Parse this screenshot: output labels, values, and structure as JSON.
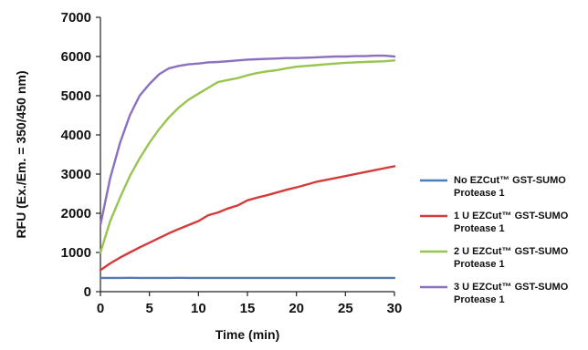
{
  "chart_data": {
    "type": "line",
    "title": "",
    "xlabel": "Time (min)",
    "ylabel": "RFU (Ex./Em. = 350/450 nm)",
    "xlim": [
      0,
      30
    ],
    "ylim": [
      0,
      7000
    ],
    "xticks": [
      0,
      5,
      10,
      15,
      20,
      25,
      30
    ],
    "yticks": [
      0,
      1000,
      2000,
      3000,
      4000,
      5000,
      6000,
      7000
    ],
    "grid": false,
    "legend_position": "right",
    "x": [
      0,
      1,
      2,
      3,
      4,
      5,
      6,
      7,
      8,
      9,
      10,
      11,
      12,
      13,
      14,
      15,
      16,
      17,
      18,
      19,
      20,
      21,
      22,
      23,
      24,
      25,
      26,
      27,
      28,
      29,
      30
    ],
    "series": [
      {
        "name_line1": "No EZCut™ GST-SUMO",
        "name_line2": "Protease 1",
        "color": "#4a7ebb",
        "values": [
          350,
          352,
          351,
          353,
          352,
          350,
          351,
          352,
          353,
          351,
          350,
          352,
          351,
          350,
          352,
          351,
          350,
          351,
          352,
          350,
          351,
          350,
          352,
          351,
          350,
          351,
          350,
          352,
          351,
          350,
          350
        ]
      },
      {
        "name_line1": "1 U EZCut™ GST-SUMO",
        "name_line2": "Protease 1",
        "color": "#d63b3b",
        "values": [
          550,
          720,
          870,
          1000,
          1130,
          1250,
          1370,
          1490,
          1600,
          1700,
          1800,
          1950,
          2020,
          2120,
          2200,
          2330,
          2400,
          2460,
          2530,
          2600,
          2660,
          2730,
          2800,
          2850,
          2900,
          2950,
          3000,
          3050,
          3100,
          3150,
          3200
        ]
      },
      {
        "name_line1": "2 U EZCut™ GST-SUMO",
        "name_line2": "Protease 1",
        "color": "#98c450",
        "values": [
          1000,
          1800,
          2400,
          2950,
          3400,
          3800,
          4150,
          4450,
          4700,
          4900,
          5050,
          5200,
          5350,
          5400,
          5450,
          5520,
          5580,
          5620,
          5650,
          5700,
          5740,
          5760,
          5780,
          5800,
          5820,
          5840,
          5850,
          5860,
          5870,
          5880,
          5900
        ]
      },
      {
        "name_line1": "3 U EZCut™ GST-SUMO",
        "name_line2": "Protease 1",
        "color": "#8c6fbe",
        "values": [
          1700,
          2900,
          3800,
          4500,
          5000,
          5300,
          5550,
          5700,
          5760,
          5800,
          5820,
          5850,
          5860,
          5880,
          5900,
          5920,
          5930,
          5940,
          5950,
          5960,
          5960,
          5970,
          5980,
          5990,
          6000,
          6000,
          6010,
          6010,
          6020,
          6020,
          6000
        ]
      }
    ]
  }
}
